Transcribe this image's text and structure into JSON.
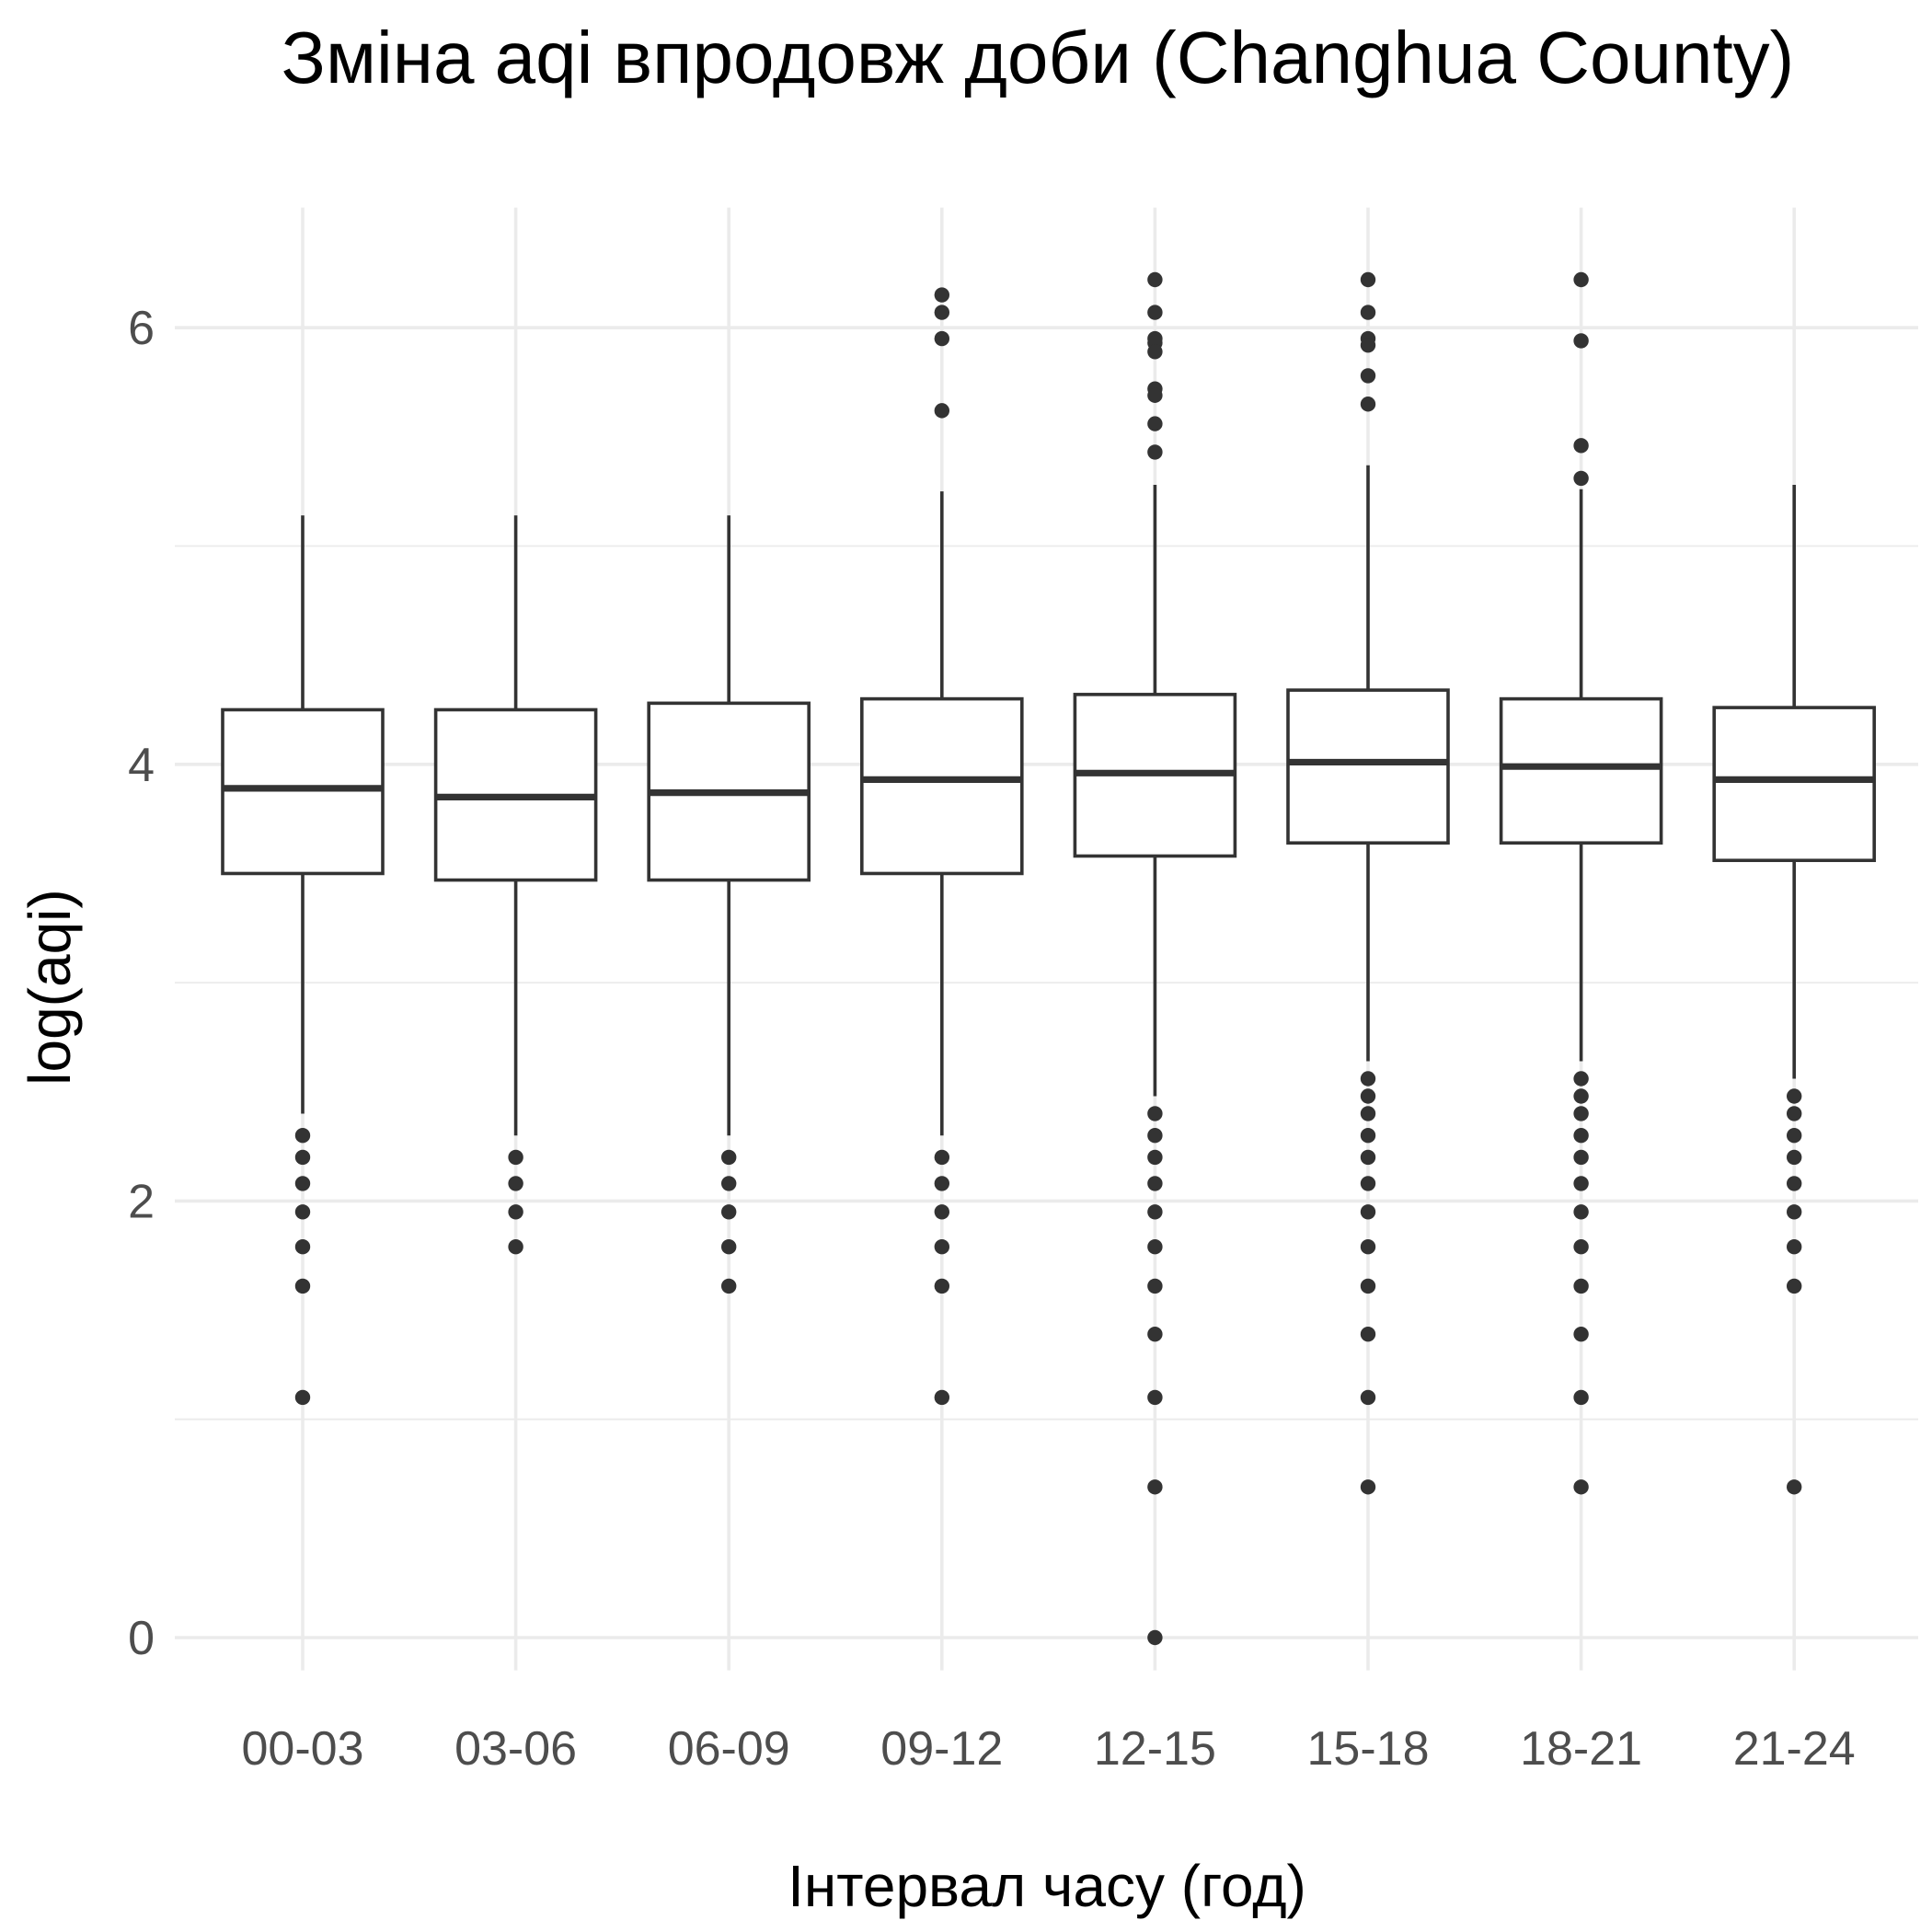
{
  "chart_data": {
    "type": "boxplot",
    "title": "Зміна aqi впродовж доби (Changhua County)",
    "xlabel": "Інтервал часу (год)",
    "ylabel": "log(aqi)",
    "ylim": [
      -0.15,
      6.55
    ],
    "y_ticks": [
      0,
      2,
      4,
      6
    ],
    "y_minor_ticks": [
      1,
      3,
      5
    ],
    "grid": true,
    "legend": "none",
    "categories": [
      "00-03",
      "03-06",
      "06-09",
      "09-12",
      "12-15",
      "15-18",
      "18-21",
      "21-24"
    ],
    "boxes": [
      {
        "category": "00-03",
        "whisker_low": 2.4,
        "q1": 3.5,
        "median": 3.89,
        "q3": 4.25,
        "whisker_high": 5.14,
        "outliers": [
          2.3,
          2.2,
          2.08,
          1.95,
          1.79,
          1.61,
          1.1
        ]
      },
      {
        "category": "03-06",
        "whisker_low": 2.3,
        "q1": 3.47,
        "median": 3.85,
        "q3": 4.25,
        "whisker_high": 5.14,
        "outliers": [
          2.2,
          2.08,
          1.95,
          1.79
        ]
      },
      {
        "category": "06-09",
        "whisker_low": 2.3,
        "q1": 3.47,
        "median": 3.87,
        "q3": 4.28,
        "whisker_high": 5.14,
        "outliers": [
          2.2,
          2.08,
          1.95,
          1.79,
          1.61
        ]
      },
      {
        "category": "09-12",
        "whisker_low": 2.3,
        "q1": 3.5,
        "median": 3.93,
        "q3": 4.3,
        "whisker_high": 5.25,
        "outliers": [
          2.2,
          2.08,
          1.95,
          1.79,
          1.61,
          1.1,
          6.15,
          6.07,
          5.95,
          5.62
        ]
      },
      {
        "category": "12-15",
        "whisker_low": 2.48,
        "q1": 3.58,
        "median": 3.96,
        "q3": 4.32,
        "whisker_high": 5.28,
        "outliers": [
          2.4,
          2.3,
          2.2,
          2.08,
          1.95,
          1.79,
          1.61,
          1.39,
          1.1,
          0.69,
          0.0,
          6.22,
          6.07,
          5.95,
          5.93,
          5.89,
          5.72,
          5.69,
          5.56,
          5.43
        ]
      },
      {
        "category": "15-18",
        "whisker_low": 2.64,
        "q1": 3.64,
        "median": 4.01,
        "q3": 4.34,
        "whisker_high": 5.37,
        "outliers": [
          2.56,
          2.48,
          2.4,
          2.3,
          2.2,
          2.08,
          1.95,
          1.79,
          1.61,
          1.39,
          1.1,
          0.69,
          6.22,
          6.07,
          5.95,
          5.92,
          5.78,
          5.65
        ]
      },
      {
        "category": "18-21",
        "whisker_low": 2.64,
        "q1": 3.64,
        "median": 3.99,
        "q3": 4.3,
        "whisker_high": 5.26,
        "outliers": [
          2.56,
          2.48,
          2.4,
          2.3,
          2.2,
          2.08,
          1.95,
          1.79,
          1.61,
          1.39,
          1.1,
          0.69,
          6.22,
          5.94,
          5.46,
          5.31
        ]
      },
      {
        "category": "21-24",
        "whisker_low": 2.56,
        "q1": 3.56,
        "median": 3.93,
        "q3": 4.26,
        "whisker_high": 5.28,
        "outliers": [
          2.48,
          2.4,
          2.3,
          2.2,
          2.08,
          1.95,
          1.79,
          1.61,
          0.69
        ]
      }
    ]
  },
  "colors": {
    "background": "#ffffff",
    "grid": "#ebebeb",
    "box_line": "#333333",
    "tick_text": "#4d4d4d",
    "title_text": "#000000"
  }
}
